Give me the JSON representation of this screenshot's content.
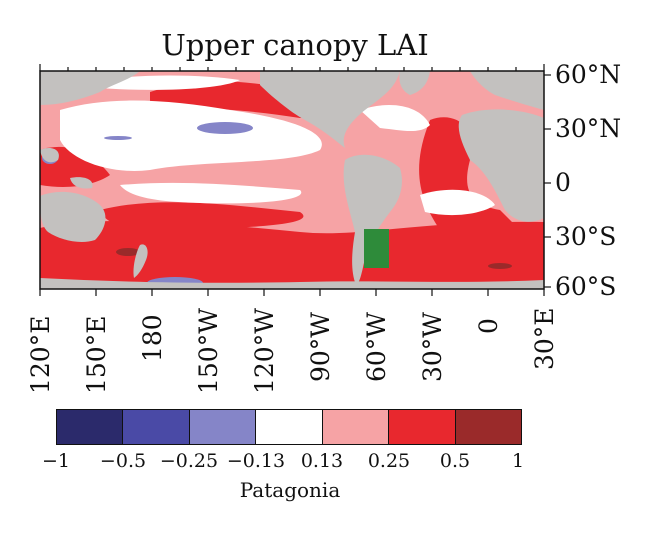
{
  "title": "Upper canopy LAI",
  "lat_labels": [
    "60°N",
    "30°N",
    "0",
    "30°S",
    "60°S"
  ],
  "lon_labels": [
    "120°E",
    "150°E",
    "180",
    "150°W",
    "120°W",
    "90°W",
    "60°W",
    "30°W",
    "0",
    "30°E"
  ],
  "colorbar": {
    "ticks": [
      "−1",
      "−0.5",
      "−0.25",
      "−0.13",
      "0.13",
      "0.25",
      "0.5",
      "1"
    ],
    "colors": [
      "#2b2a6b",
      "#4a4aa6",
      "#8585c8",
      "#ffffff",
      "#f6a3a5",
      "#e8282e",
      "#9a2a2a"
    ],
    "caption": "Patagonia"
  },
  "map_colors": {
    "land": "#c3c1bf",
    "highlight_region": "#2e8b3a",
    "strong_positive": "#e8282e",
    "weak_positive": "#f6a3a5",
    "neutral": "#ffffff",
    "weak_negative": "#8585c8"
  }
}
